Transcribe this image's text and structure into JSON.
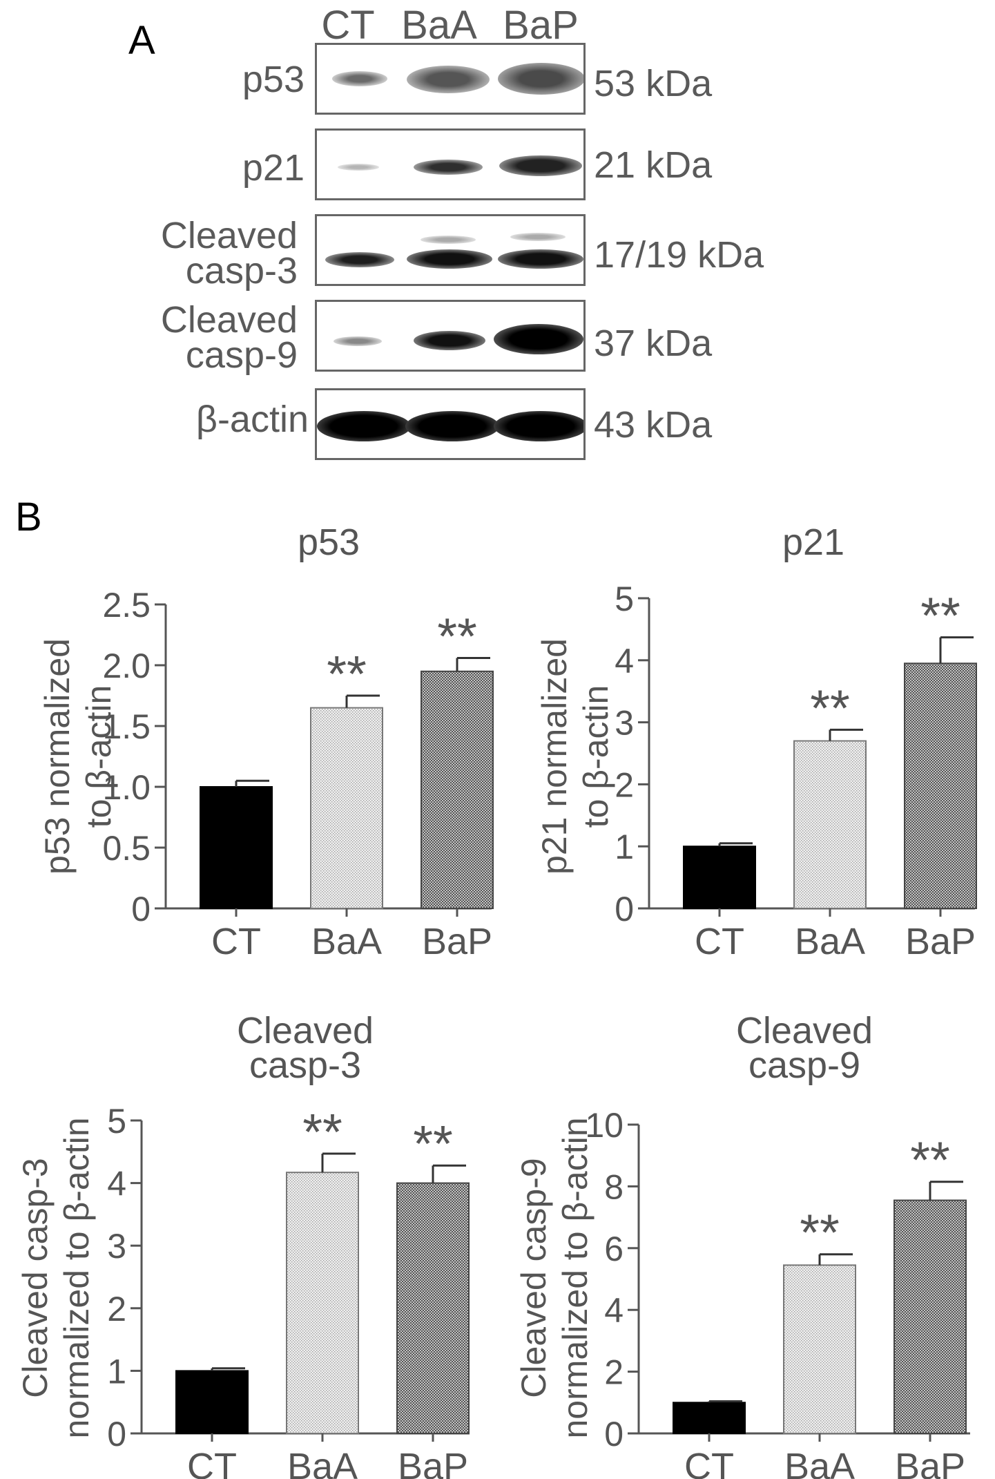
{
  "panel_a": {
    "label": "A",
    "lanes": [
      "CT",
      "BaA",
      "BaP"
    ],
    "rows": [
      {
        "label": [
          "p53"
        ],
        "mw": "53 kDa"
      },
      {
        "label": [
          "p21"
        ],
        "mw": "21 kDa"
      },
      {
        "label": [
          "Cleaved",
          "casp-3"
        ],
        "mw": "17/19 kDa"
      },
      {
        "label": [
          "Cleaved",
          "casp-9"
        ],
        "mw": "37 kDa"
      },
      {
        "label": [
          "β-actin"
        ],
        "mw": "43 kDa"
      }
    ]
  },
  "panel_b": {
    "label": "B"
  },
  "colors": {
    "axis": "#555555",
    "ct_bar": "#000000",
    "baa_bar": "#e4e4e4",
    "bap_bar": "#9a9a9a"
  },
  "chart_data": [
    {
      "type": "bar",
      "title": [
        "p53"
      ],
      "ylabel": [
        "p53 normalized",
        "to β-actin"
      ],
      "categories": [
        "CT",
        "BaA",
        "BaP"
      ],
      "values": [
        1.0,
        1.65,
        1.95
      ],
      "errors": [
        0.05,
        0.1,
        0.11
      ],
      "significance": [
        "",
        "**",
        "**"
      ],
      "ylim": [
        0,
        2.5
      ],
      "yticks": [
        "0",
        "0.5",
        "1.0",
        "1.5",
        "2.0",
        "2.5"
      ]
    },
    {
      "type": "bar",
      "title": [
        "p21"
      ],
      "ylabel": [
        "p21 normalized",
        "to β-actin"
      ],
      "categories": [
        "CT",
        "BaA",
        "BaP"
      ],
      "values": [
        1.0,
        2.7,
        3.95
      ],
      "errors": [
        0.05,
        0.18,
        0.42
      ],
      "significance": [
        "",
        "**",
        "**"
      ],
      "ylim": [
        0,
        5
      ],
      "yticks": [
        "0",
        "1",
        "2",
        "3",
        "4",
        "5"
      ]
    },
    {
      "type": "bar",
      "title": [
        "Cleaved",
        "casp-3"
      ],
      "ylabel": [
        "Cleaved casp-3",
        "normalized to β-actin"
      ],
      "categories": [
        "CT",
        "BaA",
        "BaP"
      ],
      "values": [
        1.0,
        4.17,
        4.0
      ],
      "errors": [
        0.04,
        0.3,
        0.28
      ],
      "significance": [
        "",
        "**",
        "**"
      ],
      "ylim": [
        0,
        5
      ],
      "yticks": [
        "0",
        "1",
        "2",
        "3",
        "4",
        "5"
      ]
    },
    {
      "type": "bar",
      "title": [
        "Cleaved",
        "casp-9"
      ],
      "ylabel": [
        "Cleaved casp-9",
        "normalized to β-actin"
      ],
      "categories": [
        "CT",
        "BaA",
        "BaP"
      ],
      "values": [
        1.0,
        5.45,
        7.55
      ],
      "errors": [
        0.04,
        0.35,
        0.6
      ],
      "significance": [
        "",
        "**",
        "**"
      ],
      "ylim": [
        0,
        10
      ],
      "yticks": [
        "0",
        "2",
        "4",
        "6",
        "8",
        "10"
      ]
    }
  ]
}
